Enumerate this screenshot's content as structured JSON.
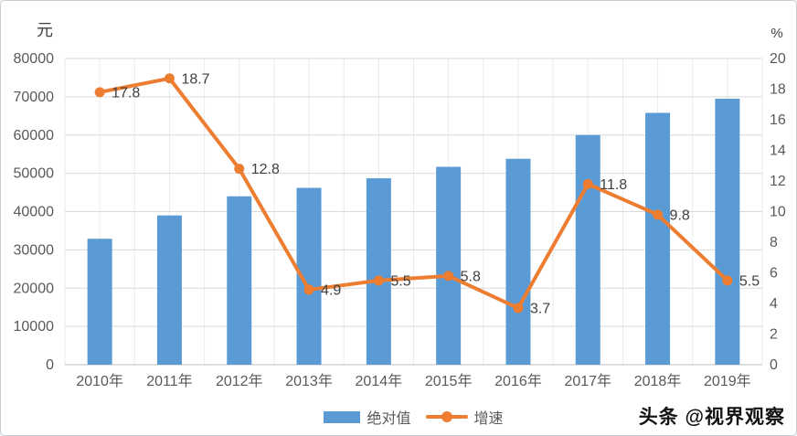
{
  "page": {
    "watermark": "头条 @视界观察"
  },
  "chart_data": {
    "type": "bar",
    "subtype": "combo-bar-line-dual-axis",
    "categories": [
      "2010年",
      "2011年",
      "2012年",
      "2013年",
      "2014年",
      "2015年",
      "2016年",
      "2017年",
      "2018年",
      "2019年"
    ],
    "series": [
      {
        "name": "绝对值",
        "chart": "bar",
        "axis": "left",
        "color": "#5B9BD5",
        "values": [
          32900,
          39000,
          44000,
          46200,
          48700,
          51700,
          53800,
          60000,
          65800,
          69500
        ]
      },
      {
        "name": "增速",
        "chart": "line",
        "axis": "right",
        "color": "#ED7D31",
        "values": [
          17.8,
          18.7,
          12.8,
          4.9,
          5.5,
          5.8,
          3.7,
          11.8,
          9.8,
          5.5
        ],
        "point_labels": [
          "17.8",
          "18.7",
          "12.8",
          "4.9",
          "5.5",
          "5.8",
          "3.7",
          "11.8",
          "9.8",
          "5.5"
        ]
      }
    ],
    "left_axis": {
      "unit": "元",
      "min": 0,
      "max": 80000,
      "step": 10000
    },
    "right_axis": {
      "unit": "%",
      "min": 0,
      "max": 20,
      "step": 2
    },
    "legend": {
      "position": "bottom",
      "items": [
        {
          "label": "绝对值",
          "color": "#5B9BD5",
          "marker": "rect"
        },
        {
          "label": "增速",
          "color": "#ED7D31",
          "marker": "line-dot"
        }
      ]
    },
    "grid": {
      "horizontal": true,
      "vertical": true
    },
    "style_colors": {
      "bar": "#5B9BD5",
      "line": "#ED7D31",
      "gridline_h": "#d9d9d9",
      "gridline_v": "#ebebeb",
      "axis_baseline": "#bfbfbf",
      "tick_text": "#595959",
      "data_label_text": "#404040"
    }
  }
}
